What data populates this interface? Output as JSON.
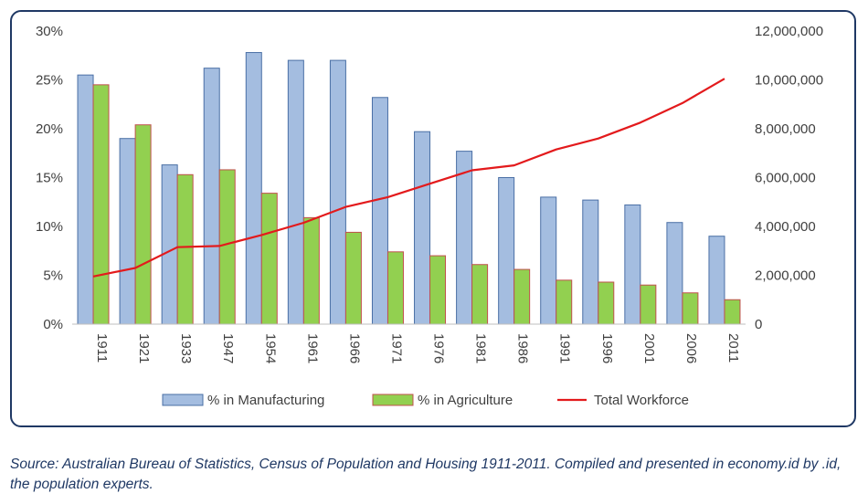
{
  "chart_data": {
    "type": "bar",
    "categories": [
      "1911",
      "1921",
      "1933",
      "1947",
      "1954",
      "1961",
      "1966",
      "1971",
      "1976",
      "1981",
      "1986",
      "1991",
      "1996",
      "2001",
      "2006",
      "2011"
    ],
    "series": [
      {
        "name": "% in Manufacturing",
        "kind": "bar",
        "axis": "left",
        "color": "#a4bde0",
        "stroke": "#4a6fa5",
        "values": [
          25.5,
          19.0,
          16.3,
          26.2,
          27.8,
          27.0,
          27.0,
          23.2,
          19.7,
          17.7,
          15.0,
          13.0,
          12.7,
          12.2,
          10.4,
          9.0
        ]
      },
      {
        "name": "% in Agriculture",
        "kind": "bar",
        "axis": "left",
        "color": "#92d050",
        "stroke": "#c0504d",
        "values": [
          24.5,
          20.4,
          15.3,
          15.8,
          13.4,
          10.9,
          9.4,
          7.4,
          7.0,
          6.1,
          5.6,
          4.5,
          4.3,
          4.0,
          3.2,
          2.5
        ]
      },
      {
        "name": "Total Workforce",
        "kind": "line",
        "axis": "right",
        "color": "#e31a1c",
        "values": [
          1950000,
          2300000,
          3150000,
          3200000,
          3650000,
          4150000,
          4800000,
          5200000,
          5750000,
          6300000,
          6500000,
          7150000,
          7600000,
          8250000,
          9050000,
          10050000
        ]
      }
    ],
    "yLeft": {
      "min": 0,
      "max": 30,
      "ticks": [
        "0%",
        "5%",
        "10%",
        "15%",
        "20%",
        "25%",
        "30%"
      ]
    },
    "yRight": {
      "min": 0,
      "max": 12000000,
      "ticks": [
        "0",
        "2,000,000",
        "4,000,000",
        "6,000,000",
        "8,000,000",
        "10,000,000",
        "12,000,000"
      ]
    },
    "legend_position": "bottom",
    "grid": false
  },
  "source_text": "Source: Australian Bureau of Statistics, Census of Population and Housing 1911-2011. Compiled and presented in economy.id by .id, the population experts."
}
